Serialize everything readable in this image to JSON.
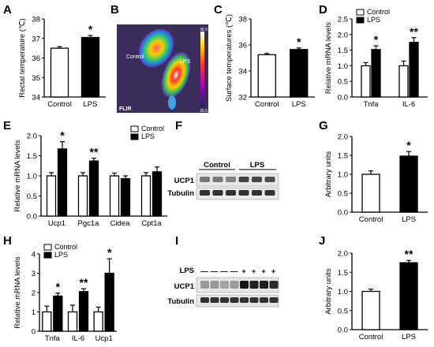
{
  "colors": {
    "control": "#ffffff",
    "lps": "#000000",
    "thermal_bg": "#3a2d5c"
  },
  "panels": {
    "B": {
      "labels": {
        "control": "Control",
        "lps": "LPS",
        "brand": "FLIR",
        "scale_max": "36.5",
        "scale_min": "26.5"
      }
    },
    "F": {
      "group_labels": [
        "Control",
        "LPS"
      ],
      "row_labels": [
        "UCP1",
        "Tubulin"
      ]
    },
    "I": {
      "marker_label": "LPS",
      "markers": [
        "—",
        "—",
        "—",
        "—",
        "+",
        "+",
        "+",
        "+"
      ],
      "row_labels": [
        "UCP1",
        "Tubulin"
      ]
    }
  },
  "chart_data": [
    {
      "panel": "A",
      "type": "bar",
      "categories": [
        "Control",
        "LPS"
      ],
      "values": [
        36.5,
        37.05
      ],
      "errors": [
        0.08,
        0.1
      ],
      "significance": [
        "",
        "*"
      ],
      "ylabel": "Rectal temperature (℃)",
      "ylim": [
        34,
        38
      ],
      "yticks": [
        34,
        35,
        36,
        37,
        38
      ]
    },
    {
      "panel": "C",
      "type": "bar",
      "categories": [
        "Control",
        "LPS"
      ],
      "values": [
        35.25,
        35.65
      ],
      "errors": [
        0.1,
        0.12
      ],
      "significance": [
        "",
        "*"
      ],
      "ylabel": "Surface temperatures (℃)",
      "ylim": [
        32,
        38
      ],
      "yticks": [
        32,
        34,
        36,
        38
      ]
    },
    {
      "panel": "D",
      "type": "bar",
      "categories": [
        "Tnfa",
        "IL-6"
      ],
      "series": [
        {
          "name": "Control",
          "values": [
            1.0,
            1.0
          ],
          "errors": [
            0.1,
            0.15
          ]
        },
        {
          "name": "LPS",
          "values": [
            1.52,
            1.75
          ],
          "errors": [
            0.12,
            0.15
          ]
        }
      ],
      "significance": [
        "*",
        "**"
      ],
      "ylabel": "Relative mRNA levels",
      "ylim": [
        0,
        2.5
      ],
      "yticks": [
        0.0,
        0.5,
        1.0,
        1.5,
        2.0,
        2.5
      ],
      "legend": "top-left"
    },
    {
      "panel": "E",
      "type": "bar",
      "categories": [
        "Ucp1",
        "Pgc1a",
        "Cidea",
        "Cpt1a"
      ],
      "series": [
        {
          "name": "Control",
          "values": [
            1.0,
            1.0,
            1.0,
            1.0
          ],
          "errors": [
            0.08,
            0.08,
            0.07,
            0.08
          ]
        },
        {
          "name": "LPS",
          "values": [
            1.67,
            1.37,
            0.93,
            1.1
          ],
          "errors": [
            0.18,
            0.07,
            0.07,
            0.12
          ]
        }
      ],
      "significance": [
        "*",
        "**",
        "",
        ""
      ],
      "ylabel": "Relative mRNA levels",
      "ylim": [
        0,
        2.0
      ],
      "yticks": [
        0.0,
        0.5,
        1.0,
        1.5,
        2.0
      ],
      "legend": "top-right"
    },
    {
      "panel": "G",
      "type": "bar",
      "categories": [
        "Control",
        "LPS"
      ],
      "values": [
        1.0,
        1.48
      ],
      "errors": [
        0.09,
        0.12
      ],
      "significance": [
        "",
        "*"
      ],
      "ylabel": "Arbitrary units",
      "ylim": [
        0,
        2.0
      ],
      "yticks": [
        0.0,
        0.5,
        1.0,
        1.5,
        2.0
      ]
    },
    {
      "panel": "H",
      "type": "bar",
      "categories": [
        "Tnfa",
        "IL-6",
        "Ucp1"
      ],
      "series": [
        {
          "name": "Control",
          "values": [
            1.0,
            1.0,
            1.0
          ],
          "errors": [
            0.3,
            0.35,
            0.25
          ]
        },
        {
          "name": "LPS",
          "values": [
            1.82,
            2.05,
            3.0
          ],
          "errors": [
            0.15,
            0.15,
            0.75
          ]
        }
      ],
      "significance": [
        "*",
        "**",
        "*"
      ],
      "ylabel": "Relative mRNA levels",
      "ylim": [
        0,
        4
      ],
      "yticks": [
        0,
        1,
        2,
        3,
        4
      ],
      "legend": "top-left"
    },
    {
      "panel": "J",
      "type": "bar",
      "categories": [
        "Control",
        "LPS"
      ],
      "values": [
        1.0,
        1.75
      ],
      "errors": [
        0.06,
        0.06
      ],
      "significance": [
        "",
        "**"
      ],
      "ylabel": "Arbitrary units",
      "ylim": [
        0,
        2.0
      ],
      "yticks": [
        0.0,
        0.5,
        1.0,
        1.5,
        2.0
      ]
    }
  ]
}
